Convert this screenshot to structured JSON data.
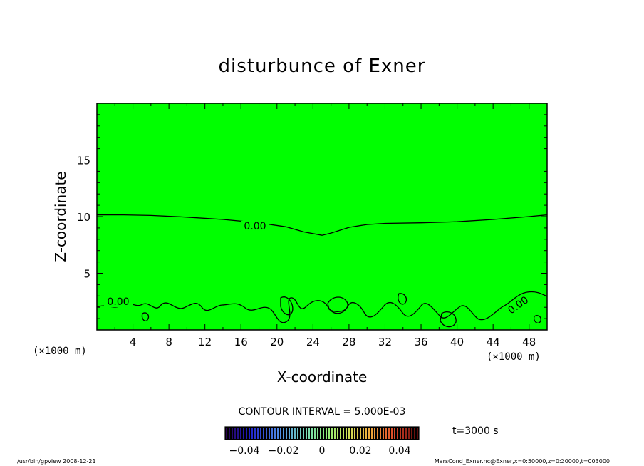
{
  "chart_data": {
    "type": "contour",
    "title": "disturbunce of Exner",
    "xlabel": "X-coordinate",
    "ylabel": "Z-coordinate",
    "x_unit": "(×1000 m)",
    "y_unit": "(×1000 m)",
    "xlim": [
      0,
      50
    ],
    "ylim": [
      0,
      20
    ],
    "xticks": [
      4,
      8,
      12,
      16,
      20,
      24,
      28,
      32,
      36,
      40,
      44,
      48
    ],
    "yticks": [
      5,
      10,
      15
    ],
    "fill_color": "#00ff00",
    "contour_interval_label": "CONTOUR INTERVAL = 5.000E-03",
    "contour_labels": [
      "0.00",
      "0.00",
      "0.00"
    ],
    "zero_contour_upper": [
      [
        0,
        10.15
      ],
      [
        3,
        10.15
      ],
      [
        6,
        10.1
      ],
      [
        10,
        9.95
      ],
      [
        14,
        9.75
      ],
      [
        18,
        9.45
      ],
      [
        21,
        9.1
      ],
      [
        23,
        8.65
      ],
      [
        25,
        8.35
      ],
      [
        26,
        8.55
      ],
      [
        28,
        9.05
      ],
      [
        30,
        9.3
      ],
      [
        32,
        9.4
      ],
      [
        36,
        9.45
      ],
      [
        40,
        9.55
      ],
      [
        44,
        9.75
      ],
      [
        48,
        10.0
      ],
      [
        50,
        10.15
      ]
    ],
    "colorbar": {
      "ticks": [
        "−0.04",
        "−0.02",
        "0",
        "0.02",
        "0.04"
      ],
      "range": [
        -0.05,
        0.05
      ]
    },
    "time_label": "t=3000 s"
  },
  "footer": {
    "left": "/usr/bin/gpview   2008-12-21",
    "right": "MarsCond_Exner.nc@Exner,x=0:50000,z=0:20000,t=003000"
  }
}
